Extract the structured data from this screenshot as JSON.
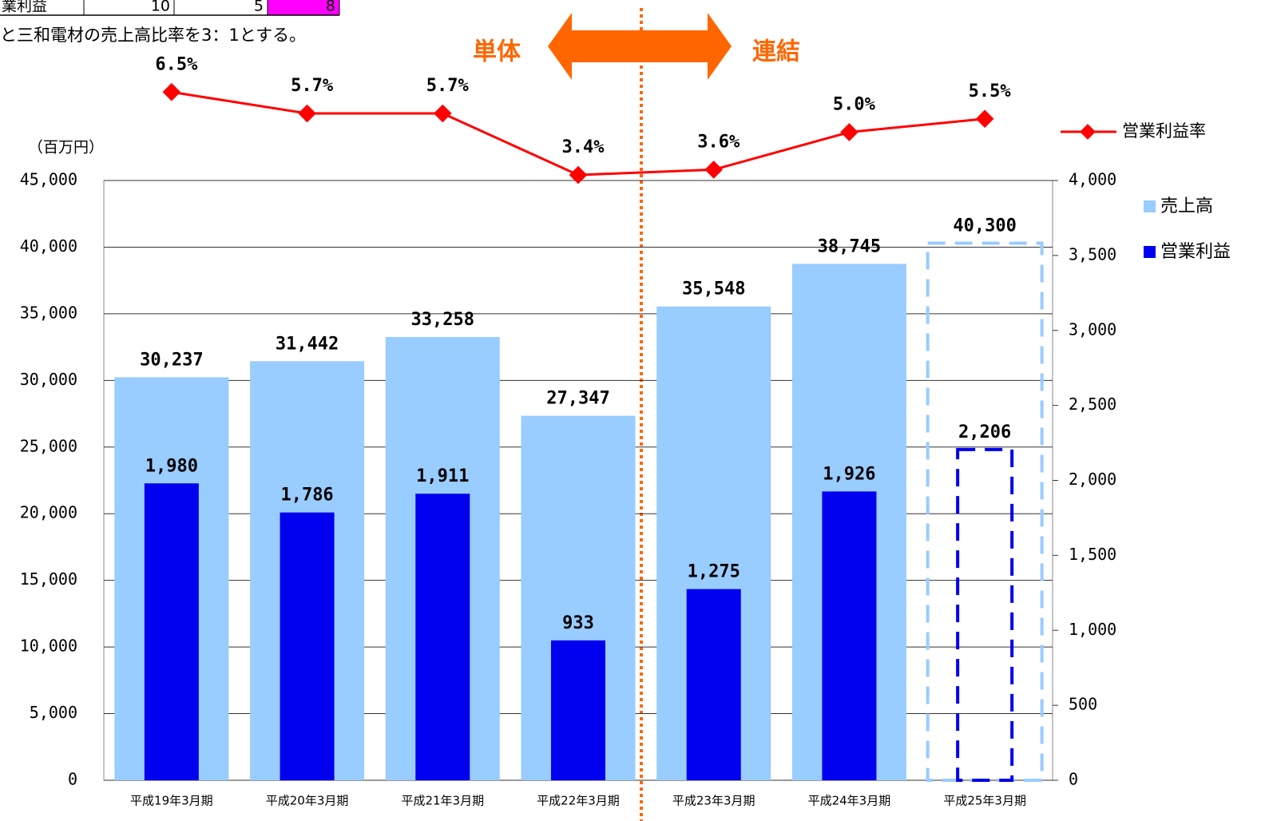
{
  "fragments": {
    "table_row": [
      "業利益",
      10,
      5,
      8
    ],
    "note": "と三和電材の売上高比率を3：1とする。"
  },
  "chart_data": {
    "type": "bar",
    "unit_label": "（百万円）",
    "annotations": [
      "単体",
      "連結"
    ],
    "categories": [
      "平成19年3月期",
      "平成20年3月期",
      "平成21年3月期",
      "平成22年3月期",
      "平成23年3月期",
      "平成24年3月期",
      "平成25年3月期"
    ],
    "series": [
      {
        "name": "売上高",
        "type": "bar",
        "color": "#99ccff",
        "values": [
          30237,
          31442,
          33258,
          27347,
          35548,
          38745,
          40300
        ],
        "value_labels": [
          "30,237",
          "31,442",
          "33,258",
          "27,347",
          "35,548",
          "38,745",
          "40,300"
        ],
        "line_styles": [
          "solid",
          "solid",
          "solid",
          "solid",
          "solid",
          "solid",
          "dashed"
        ]
      },
      {
        "name": "営業利益",
        "type": "bar",
        "axis": "y2",
        "color": "#0000ee",
        "values": [
          1980,
          1786,
          1911,
          933,
          1275,
          1926,
          2206
        ],
        "value_labels": [
          "1,980",
          "1,786",
          "1,911",
          "933",
          "1,275",
          "1,926",
          "2,206"
        ],
        "line_styles": [
          "solid",
          "solid",
          "solid",
          "solid",
          "solid",
          "solid",
          "dashed"
        ]
      },
      {
        "name": "営業利益率",
        "type": "line",
        "axis": "y3",
        "color": "#ff0000",
        "values": [
          6.5,
          5.7,
          5.7,
          3.4,
          3.6,
          5.0,
          5.5
        ],
        "value_labels": [
          "6.5%",
          "5.7%",
          "5.7%",
          "3.4%",
          "3.6%",
          "5.0%",
          "5.5%"
        ]
      }
    ],
    "ylim": [
      0,
      45000
    ],
    "yticks": [
      0,
      {
        "value": 5000,
        "label": "5,000"
      },
      {
        "value": 10000,
        "label": "10,000"
      },
      {
        "value": 15000,
        "label": "15,000"
      },
      {
        "value": 20000,
        "label": "20,000"
      },
      {
        "value": 25000,
        "label": "25,000"
      },
      {
        "value": 30000,
        "label": "30,000"
      },
      {
        "value": 35000,
        "label": "35,000"
      },
      {
        "value": 40000,
        "label": "40,000"
      },
      {
        "value": 45000,
        "label": "45,000"
      }
    ],
    "y2lim": [
      0,
      4000
    ],
    "y2ticks": [
      0,
      500,
      {
        "value": 1000,
        "label": "1,000"
      },
      {
        "value": 1500,
        "label": "1,500"
      },
      {
        "value": 2000,
        "label": "2,000"
      },
      {
        "value": 2500,
        "label": "2,500"
      },
      {
        "value": 3000,
        "label": "3,000"
      },
      {
        "value": 3500,
        "label": "3,500"
      },
      {
        "value": 4000,
        "label": "4,000"
      }
    ],
    "y3lim": [
      0,
      8
    ],
    "grid": true,
    "legend": "right"
  }
}
